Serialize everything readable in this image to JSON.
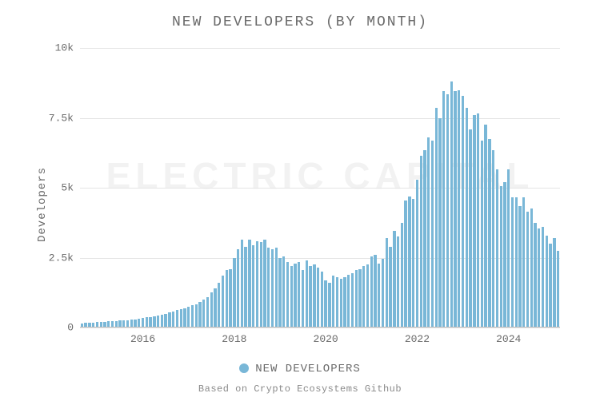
{
  "chart": {
    "type": "bar",
    "title": "NEW DEVELOPERS (BY MONTH)",
    "title_fontsize": 18,
    "title_color": "#6a6a6a",
    "ylabel": "Developers",
    "label_fontsize": 14,
    "label_color": "#6a6a6a",
    "background_color": "#ffffff",
    "grid_color": "#e4e4e4",
    "axis_color": "#bdbdbd",
    "bar_color": "#79b7d7",
    "bar_gap_ratio": 0.3,
    "ylim": [
      0,
      10000
    ],
    "yticks": [
      {
        "value": 0,
        "label": "0"
      },
      {
        "value": 2500,
        "label": "2.5k"
      },
      {
        "value": 5000,
        "label": "5k"
      },
      {
        "value": 7500,
        "label": "7.5k"
      },
      {
        "value": 10000,
        "label": "10k"
      }
    ],
    "x_start_year": 2014,
    "x_start_month": 9,
    "xticks_years": [
      2016,
      2018,
      2020,
      2022,
      2024
    ],
    "values": [
      150,
      160,
      170,
      180,
      190,
      200,
      210,
      220,
      230,
      240,
      250,
      260,
      270,
      280,
      300,
      320,
      340,
      360,
      380,
      410,
      440,
      470,
      500,
      540,
      580,
      620,
      660,
      700,
      740,
      790,
      840,
      920,
      1000,
      1100,
      1250,
      1400,
      1600,
      1850,
      2050,
      2100,
      2500,
      2800,
      3150,
      2900,
      3150,
      2950,
      3100,
      3050,
      3150,
      2850,
      2800,
      2850,
      2500,
      2550,
      2350,
      2200,
      2300,
      2350,
      2050,
      2400,
      2200,
      2250,
      2150,
      2000,
      1700,
      1600,
      1850,
      1800,
      1750,
      1800,
      1900,
      1950,
      2050,
      2100,
      2200,
      2250,
      2550,
      2600,
      2300,
      2450,
      3200,
      2900,
      3450,
      3250,
      3750,
      4550,
      4700,
      4600,
      5300,
      6150,
      6350,
      6800,
      6700,
      7850,
      7500,
      8450,
      8350,
      8800,
      8450,
      8500,
      8300,
      7850,
      7100,
      7600,
      7650,
      6700,
      7250,
      6750,
      6350,
      5650,
      5050,
      5200,
      5650,
      4650,
      4650,
      4350,
      4650,
      4150,
      4250,
      3750,
      3550,
      3600,
      3300,
      3000,
      3200,
      2750
    ],
    "watermark": {
      "text": "ELECTRIC CAPITAL",
      "color": "#f2f2f2",
      "fontsize": 46,
      "top_pct": 38
    },
    "legend": {
      "label": "NEW DEVELOPERS",
      "dot_color": "#79b7d7",
      "text_color": "#6a6a6a"
    },
    "caption": "Based on Crypto Ecosystems Github",
    "caption_color": "#8a8a8a"
  }
}
